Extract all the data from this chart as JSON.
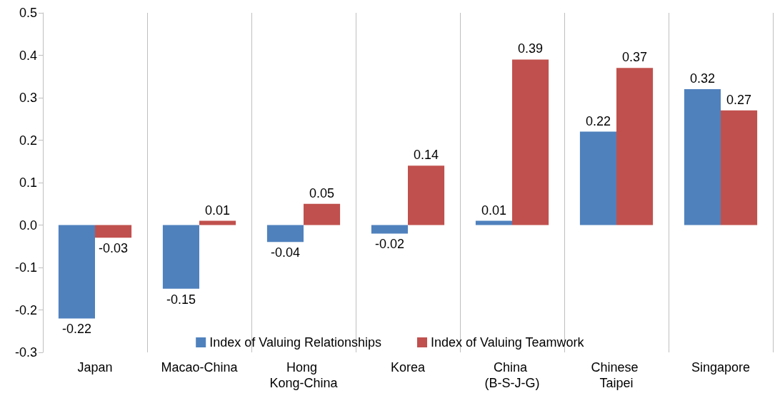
{
  "chart_data": {
    "type": "bar",
    "categories": [
      "Japan",
      "Macao-China",
      "Hong Kong-China",
      "Korea",
      "China (B-S-J-G)",
      "Chinese Taipei",
      "Singapore"
    ],
    "series": [
      {
        "name": "Index of Valuing Relationships",
        "color": "#4f81bd",
        "values": [
          -0.22,
          -0.15,
          -0.04,
          -0.02,
          0.01,
          0.22,
          0.32
        ]
      },
      {
        "name": "Index of Valuing Teamwork",
        "color": "#c0504d",
        "values": [
          -0.03,
          0.01,
          0.05,
          0.14,
          0.39,
          0.37,
          0.27
        ]
      }
    ],
    "ylim": [
      -0.3,
      0.5
    ],
    "yticks": [
      -0.3,
      -0.2,
      -0.1,
      {
        "value": 0,
        "label": "0.0"
      },
      0.1,
      0.2,
      0.3,
      0.4,
      0.5
    ],
    "grid": "x",
    "legend": "bottom",
    "data_labels": true
  }
}
